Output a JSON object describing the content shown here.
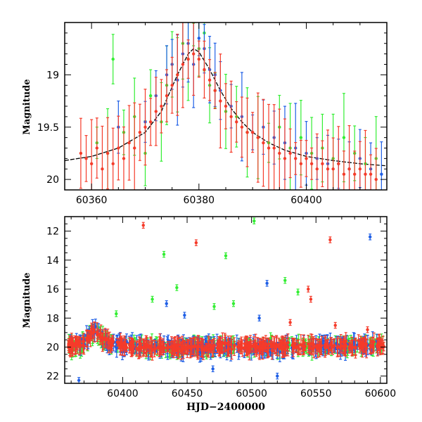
{
  "chart_data": [
    {
      "type": "scatter",
      "ylabel": "Magnitude",
      "xlabel": "",
      "xlim": [
        60355,
        60415
      ],
      "ylim": [
        20.1,
        18.5
      ],
      "y_inverted": true,
      "grid": false,
      "xticks": [
        60360,
        60380,
        60400
      ],
      "yticks": [
        19,
        19.5,
        20
      ],
      "colors": {
        "green": "#33ee33",
        "blue": "#1f5fe6",
        "red": "#f53b2a",
        "model": "#000000"
      },
      "series": [
        {
          "color": "green",
          "x": [
            60361,
            60363,
            60364,
            60366,
            60368,
            60370,
            60371,
            60373,
            60374,
            60375,
            60376,
            60377,
            60378,
            60379,
            60380,
            60381,
            60382,
            60383,
            60385,
            60387,
            60389,
            60391,
            60393,
            60395,
            60397,
            60399,
            60401,
            60403,
            60405,
            60407,
            60409,
            60411,
            60413
          ],
          "y": [
            19.65,
            19.75,
            18.85,
            19.55,
            19.4,
            19.75,
            19.2,
            19.45,
            19.1,
            18.9,
            19.0,
            18.7,
            18.85,
            18.5,
            18.75,
            18.6,
            19.1,
            19.15,
            19.35,
            19.4,
            19.55,
            19.6,
            19.65,
            19.5,
            19.7,
            19.6,
            19.75,
            19.7,
            19.8,
            19.6,
            19.75,
            19.85,
            19.8
          ]
        },
        {
          "color": "blue",
          "x": [
            60365,
            60370,
            60372,
            60374,
            60375,
            60376,
            60377,
            60378,
            60379,
            60380,
            60381,
            60382,
            60383,
            60384,
            60386,
            60388,
            60390,
            60392,
            60394,
            60396,
            60398,
            60400,
            60402,
            60404,
            60406,
            60408,
            60410,
            60412,
            60414
          ],
          "y": [
            19.5,
            19.45,
            19.2,
            19.0,
            18.9,
            19.05,
            18.8,
            18.7,
            18.9,
            18.65,
            18.75,
            18.95,
            19.0,
            19.15,
            19.3,
            19.4,
            19.55,
            19.5,
            19.6,
            19.65,
            19.7,
            19.75,
            19.8,
            19.85,
            19.85,
            19.9,
            19.8,
            19.9,
            19.95
          ]
        },
        {
          "color": "red",
          "x": [
            60358,
            60359,
            60360,
            60361,
            60362,
            60363,
            60364,
            60365,
            60366,
            60367,
            60368,
            60369,
            60370,
            60371,
            60372,
            60373,
            60374,
            60375,
            60376,
            60377,
            60378,
            60379,
            60380,
            60381,
            60382,
            60383,
            60384,
            60385,
            60386,
            60387,
            60388,
            60389,
            60390,
            60391,
            60392,
            60393,
            60394,
            60395,
            60396,
            60397,
            60398,
            60399,
            60400,
            60401,
            60402,
            60403,
            60404,
            60405,
            60406,
            60407,
            60408,
            60409,
            60410,
            60411,
            60412,
            60413
          ],
          "y": [
            19.75,
            19.8,
            19.85,
            19.7,
            19.9,
            19.75,
            19.85,
            19.7,
            19.8,
            19.65,
            19.7,
            19.55,
            19.5,
            19.45,
            19.35,
            19.3,
            19.2,
            19.1,
            19.0,
            18.9,
            18.85,
            18.8,
            18.85,
            18.95,
            19.05,
            19.15,
            19.25,
            19.3,
            19.4,
            19.45,
            19.5,
            19.55,
            19.55,
            19.6,
            19.65,
            19.7,
            19.7,
            19.75,
            19.8,
            19.75,
            19.8,
            19.85,
            19.8,
            19.85,
            19.9,
            19.85,
            19.9,
            19.9,
            19.85,
            19.95,
            19.9,
            19.95,
            19.9,
            19.95,
            19.95,
            20.0
          ]
        }
      ],
      "model": {
        "x": [
          60355,
          60360,
          60365,
          60370,
          60373,
          60376,
          60378,
          60379,
          60380,
          60382,
          60384,
          60386,
          60388,
          60390,
          60393,
          60396,
          60400,
          60405,
          60410,
          60415
        ],
        "y": [
          19.82,
          19.78,
          19.7,
          19.55,
          19.35,
          19.0,
          18.8,
          18.75,
          18.78,
          18.95,
          19.15,
          19.32,
          19.45,
          19.55,
          19.65,
          19.72,
          19.78,
          19.82,
          19.85,
          19.87
        ]
      }
    },
    {
      "type": "scatter",
      "ylabel": "Magnitude",
      "xlabel": "HJD−2400000",
      "xlim": [
        60355,
        60605
      ],
      "ylim": [
        22.5,
        11
      ],
      "y_inverted": true,
      "grid": false,
      "xticks": [
        60400,
        60450,
        60500,
        60550,
        60600
      ],
      "yticks": [
        12,
        14,
        16,
        18,
        20,
        22
      ],
      "colors": {
        "green": "#33ee33",
        "blue": "#1f5fe6",
        "red": "#f53b2a",
        "model": "#000000"
      },
      "outliers": [
        {
          "color": "red",
          "x": 60416,
          "y": 11.6
        },
        {
          "color": "red",
          "x": 60457,
          "y": 12.8
        },
        {
          "color": "red",
          "x": 60561,
          "y": 12.6
        },
        {
          "color": "green",
          "x": 60502,
          "y": 11.3
        },
        {
          "color": "green",
          "x": 60432,
          "y": 13.6
        },
        {
          "color": "green",
          "x": 60480,
          "y": 13.7
        },
        {
          "color": "green",
          "x": 60526,
          "y": 15.4
        },
        {
          "color": "green",
          "x": 60423,
          "y": 16.7
        },
        {
          "color": "green",
          "x": 60442,
          "y": 15.9
        },
        {
          "color": "green",
          "x": 60471,
          "y": 17.2
        },
        {
          "color": "green",
          "x": 60486,
          "y": 17.0
        },
        {
          "color": "green",
          "x": 60536,
          "y": 16.2
        },
        {
          "color": "green",
          "x": 60395,
          "y": 17.7
        },
        {
          "color": "blue",
          "x": 60592,
          "y": 12.4
        },
        {
          "color": "blue",
          "x": 60512,
          "y": 15.6
        },
        {
          "color": "blue",
          "x": 60434,
          "y": 17.0
        },
        {
          "color": "blue",
          "x": 60448,
          "y": 17.8
        },
        {
          "color": "blue",
          "x": 60506,
          "y": 18.0
        },
        {
          "color": "blue",
          "x": 60366,
          "y": 22.3
        },
        {
          "color": "blue",
          "x": 60520,
          "y": 22.0
        },
        {
          "color": "blue",
          "x": 60470,
          "y": 21.5
        },
        {
          "color": "red",
          "x": 60544,
          "y": 16.0
        },
        {
          "color": "red",
          "x": 60546,
          "y": 16.7
        },
        {
          "color": "red",
          "x": 60530,
          "y": 18.3
        },
        {
          "color": "red",
          "x": 60565,
          "y": 18.5
        },
        {
          "color": "red",
          "x": 60590,
          "y": 18.8
        }
      ],
      "baseline": {
        "x": [
          60360,
          60370,
          60378,
          60385,
          60395,
          60420,
          60450,
          60480,
          60510,
          60540,
          60570,
          60600
        ],
        "y": [
          19.9,
          19.7,
          18.8,
          19.5,
          19.85,
          20.0,
          20.0,
          19.95,
          20.0,
          19.95,
          19.9,
          19.85
        ]
      }
    }
  ]
}
